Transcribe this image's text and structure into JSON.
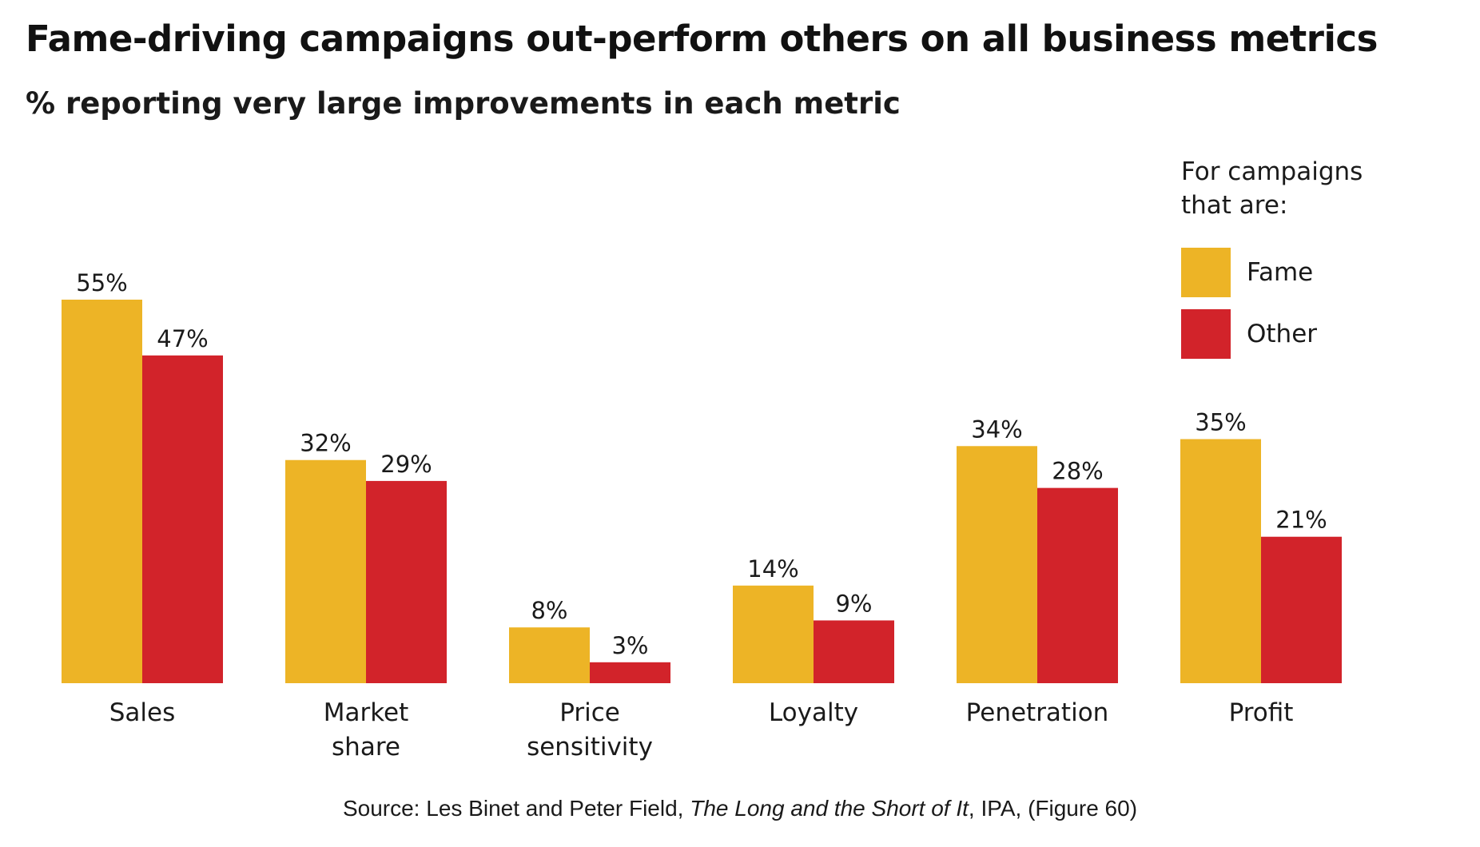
{
  "colors": {
    "fame": "#EDB426",
    "other": "#D2232A"
  },
  "legend": {
    "title_line1": "For campaigns",
    "title_line2": "that are:"
  },
  "source": {
    "prefix": "Source: Les Binet and Peter Field, ",
    "book": "The Long and the Short of It",
    "suffix": ", IPA, (Figure 60)"
  },
  "chart_data": {
    "type": "bar",
    "title": "Fame-driving campaigns out-perform others on all business metrics",
    "subtitle": "% reporting very large improvements in each metric",
    "categories": [
      [
        "Sales"
      ],
      [
        "Market",
        "share"
      ],
      [
        "Price",
        "sensitivity"
      ],
      [
        "Loyalty"
      ],
      [
        "Penetration"
      ],
      [
        "Profit"
      ]
    ],
    "series": [
      {
        "name": "Fame",
        "values": [
          55,
          32,
          8,
          14,
          34,
          35
        ]
      },
      {
        "name": "Other",
        "values": [
          47,
          29,
          3,
          9,
          28,
          21
        ]
      }
    ],
    "value_suffix": "%",
    "ylim": [
      0,
      55
    ],
    "xlabel": "",
    "ylabel": "",
    "grid": false,
    "legend_position": "top-right"
  }
}
